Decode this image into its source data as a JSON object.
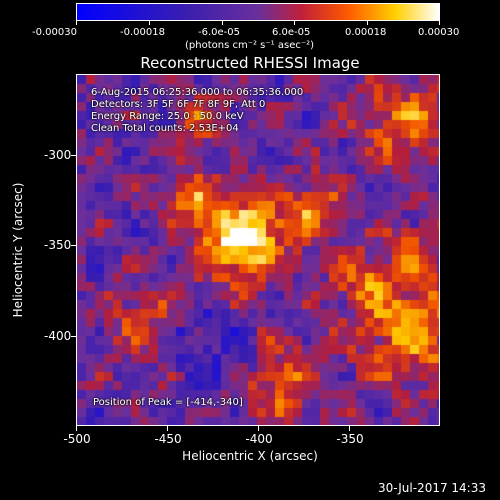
{
  "colorbar": {
    "ticks": [
      "-0.00030",
      "-0.00018",
      "-6.0e-05",
      "6.0e-05",
      "0.00018",
      "0.00030"
    ],
    "unit": "(photons cm⁻² s⁻¹ asec⁻²)"
  },
  "title": "Reconstructed RHESSI Image",
  "annotations": {
    "time": "6-Aug-2015 06:25:36.000 to 06:35:36.000",
    "detectors": "Detectors: 3F 5F 6F 7F 8F 9F, Att 0",
    "energy": "Energy Range: 25.0 - 50.0 keV",
    "clean": "Clean     Total counts: 2.53E+04",
    "peak": "Position of Peak = [-414,-340]"
  },
  "x_axis": {
    "label": "Heliocentric X (arcsec)",
    "ticks": [
      "-500",
      "-450",
      "-400",
      "-350"
    ]
  },
  "y_axis": {
    "label": "Heliocentric Y (arcsec)",
    "ticks": [
      "-300",
      "-350",
      "-400"
    ]
  },
  "footer": "30-Jul-2017 14:33",
  "colors": {
    "colormap_low": "#0000ff",
    "colormap_mid": "#6a2f9c",
    "colormap_high": "#ffffff",
    "background": "#000000"
  }
}
